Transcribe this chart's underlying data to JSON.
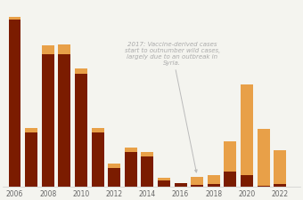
{
  "years": [
    2006,
    2007,
    2008,
    2009,
    2010,
    2011,
    2012,
    2013,
    2014,
    2015,
    2016,
    2017,
    2018,
    2019,
    2020,
    2021,
    2022
  ],
  "wild": [
    1997,
    650,
    1580,
    1580,
    1350,
    650,
    220,
    416,
    359,
    74,
    37,
    22,
    33,
    175,
    140,
    6,
    30
  ],
  "vaccine_derived": [
    30,
    50,
    100,
    115,
    60,
    50,
    56,
    47,
    54,
    28,
    4,
    96,
    104,
    364,
    1081,
    680,
    400
  ],
  "wild_color": "#7B1C00",
  "vaccine_color": "#E8A048",
  "bg_color": "#f4f4ef",
  "annotation_text": "2017: Vaccine-derived cases\nstart to outnumber wild cases,\nlargely due to an outbreak in\nSyria.",
  "figsize": [
    3.4,
    2.26
  ],
  "dpi": 100
}
